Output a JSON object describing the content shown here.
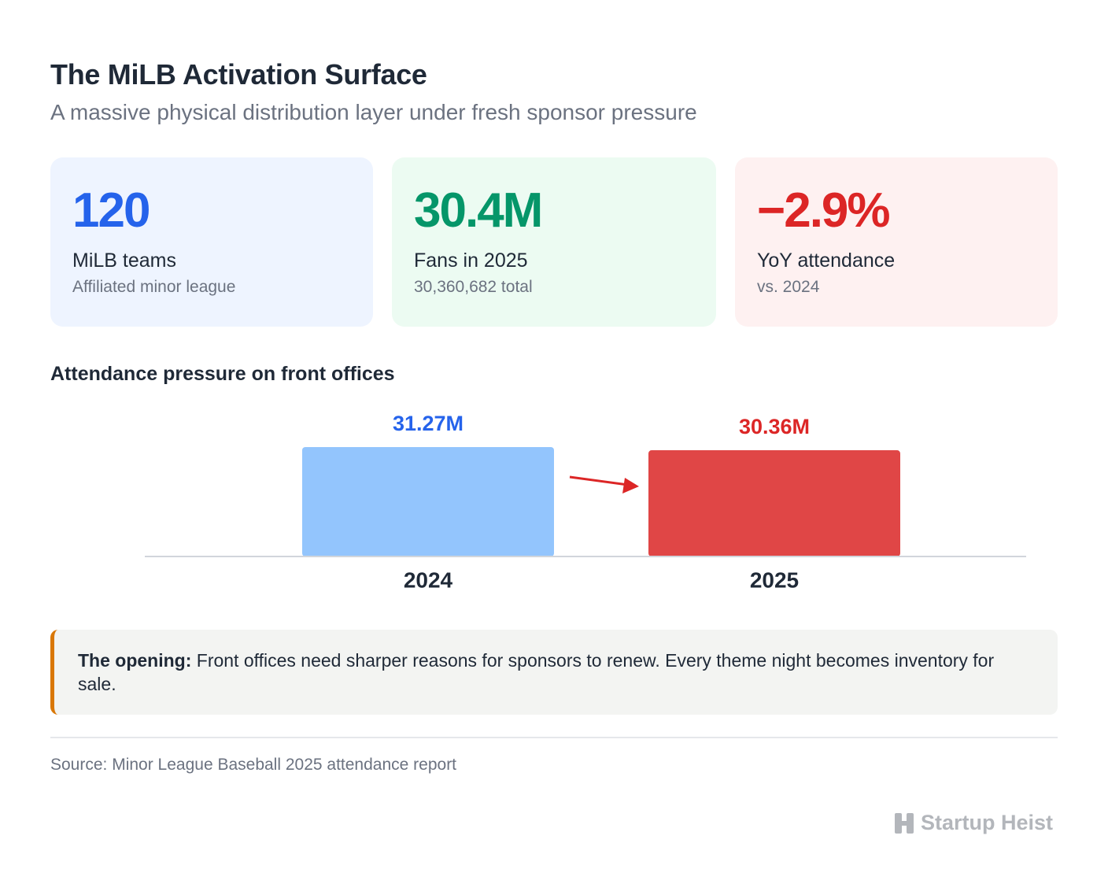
{
  "header": {
    "title": "The MiLB Activation Surface",
    "subtitle": "A massive physical distribution layer under fresh sponsor pressure"
  },
  "cards": [
    {
      "value": "120",
      "label": "MiLB teams",
      "note": "Affiliated minor league"
    },
    {
      "value": "30.4M",
      "label": "Fans in 2025",
      "note": "30,360,682 total"
    },
    {
      "value": "−2.9%",
      "label": "YoY attendance",
      "note": "vs. 2024"
    }
  ],
  "chart_data": {
    "type": "bar",
    "title": "Attendance pressure on front offices",
    "categories": [
      "2024",
      "2025"
    ],
    "values": [
      31.27,
      30.36
    ],
    "value_labels": [
      "31.27M",
      "30.36M"
    ],
    "colors": [
      "#93c5fd",
      "#e04646"
    ],
    "label_colors": [
      "#2563eb",
      "#dc2626"
    ]
  },
  "callout": {
    "lead": "The opening:",
    "text": "Front offices need sharper reasons for sponsors to renew. Every theme night becomes inventory for sale."
  },
  "source": "Source: Minor League Baseball 2025 attendance report",
  "brand": "Startup Heist"
}
